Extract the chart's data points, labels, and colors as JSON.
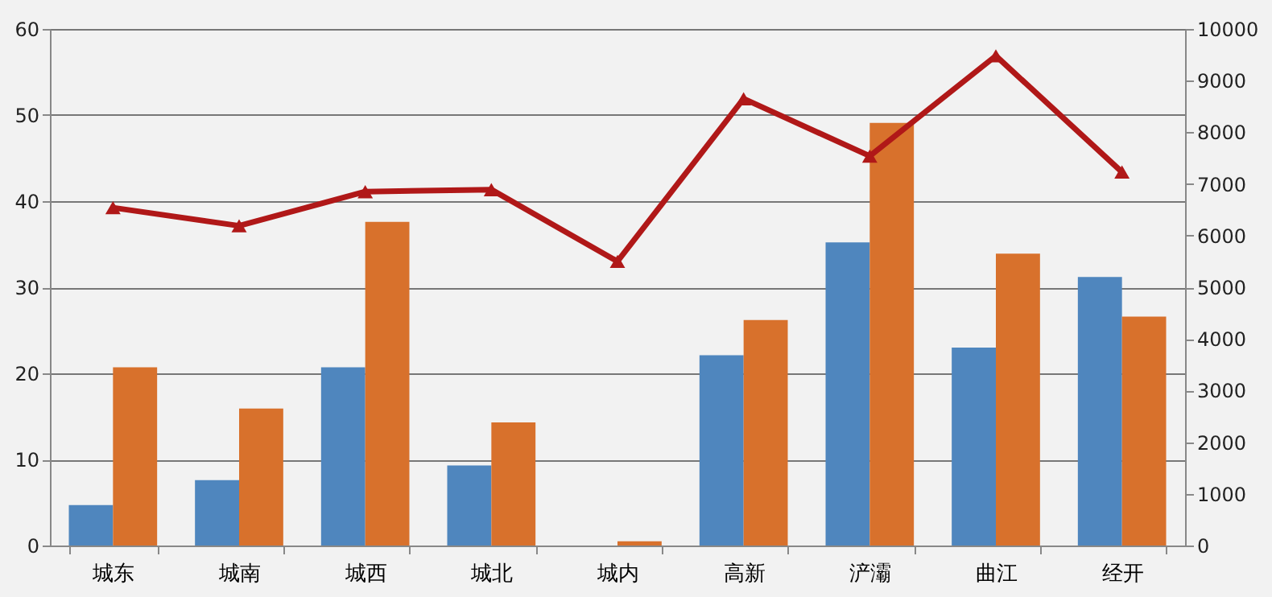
{
  "chart_data": {
    "type": "bar",
    "categories": [
      "城东",
      "城南",
      "城西",
      "城北",
      "城内",
      "高新",
      "浐灞",
      "曲江",
      "经开"
    ],
    "series": [
      {
        "color": "#4f86be",
        "values": [
          4.7,
          7.6,
          20.7,
          9.3,
          0,
          22.1,
          35.2,
          23,
          31.2
        ]
      },
      {
        "color": "#d8712c",
        "values": [
          20.7,
          15.9,
          37.6,
          14.3,
          0.5,
          26.2,
          49.1,
          33.9,
          26.6
        ]
      },
      {
        "type": "line",
        "axis": "y2",
        "color": "#b01818",
        "marker": "triangle",
        "values": [
          6540,
          6190,
          6850,
          6890,
          5500,
          8650,
          7540,
          9480,
          7230
        ]
      }
    ],
    "ylim": [
      0,
      60
    ],
    "yticks": [
      0,
      10,
      20,
      30,
      40,
      50,
      60
    ],
    "y2lim": [
      0,
      10000
    ],
    "y2ticks": [
      0,
      1000,
      2000,
      3000,
      4000,
      5000,
      6000,
      7000,
      8000,
      9000,
      10000
    ],
    "grid": "y",
    "legend": false
  }
}
